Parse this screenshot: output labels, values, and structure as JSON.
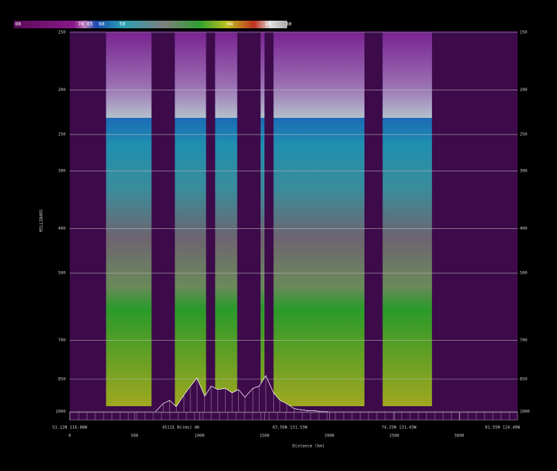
{
  "chart_data": {
    "type": "cross-section",
    "colorbar_labels": [
      "00",
      "70",
      "65",
      "60",
      "50",
      "-04",
      "20",
      "30"
    ],
    "y_label": "MILLIBARS",
    "x_label": "Distance (km)",
    "y_log": true,
    "ylim": [
      150,
      1000
    ],
    "yticks": [
      150,
      200,
      250,
      300,
      400,
      500,
      700,
      850,
      1000
    ],
    "xlim": [
      0,
      3450
    ],
    "xticks": [
      0,
      500,
      1000,
      1500,
      2000,
      2500,
      3000
    ],
    "locations": [
      "51.12N 116.88W",
      "4511E Ni(ms) AK",
      "63.56N 131.53W",
      "74.25N 131.43W",
      "81.55N 124.49W"
    ],
    "segments": [
      [
        280,
        630
      ],
      [
        810,
        1050
      ],
      [
        1120,
        1290
      ],
      [
        1470,
        1500
      ],
      [
        1570,
        2270
      ],
      [
        2410,
        2790
      ]
    ],
    "terrain": {
      "x": [
        660,
        720,
        770,
        820,
        880,
        930,
        980,
        1040,
        1090,
        1140,
        1200,
        1250,
        1300,
        1350,
        1410,
        1460,
        1510,
        1570,
        1620,
        1670,
        1730,
        1780,
        1830,
        1890,
        1940,
        1990
      ],
      "values": [
        1000,
        960,
        945,
        975,
        920,
        880,
        845,
        925,
        880,
        895,
        890,
        910,
        895,
        930,
        890,
        880,
        835,
        910,
        945,
        960,
        985,
        990,
        995,
        995,
        1000,
        1000
      ]
    },
    "grid": true
  }
}
